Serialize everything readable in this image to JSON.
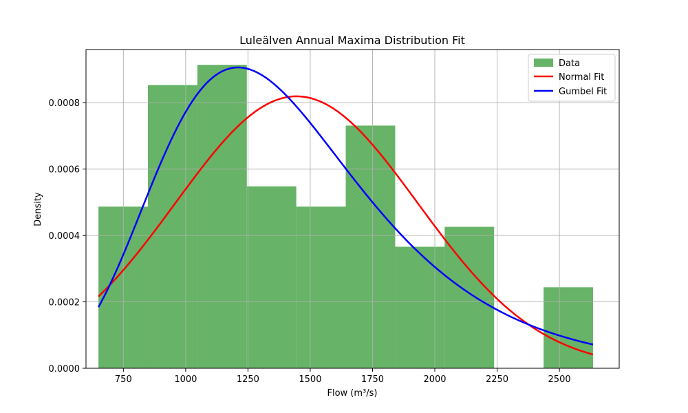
{
  "chart_data": {
    "type": "histogram-with-fits",
    "title": "Luleälven Annual Maxima Distribution Fit",
    "xlabel": "Flow (m³/s)",
    "ylabel": "Density",
    "xlim": [
      600,
      2740
    ],
    "ylim": [
      0,
      0.00096
    ],
    "x_ticks": [
      750,
      1000,
      1250,
      1500,
      1750,
      2000,
      2250,
      2500
    ],
    "x_tick_labels": [
      "750",
      "1000",
      "1250",
      "1500",
      "1750",
      "2000",
      "2250",
      "2500"
    ],
    "y_ticks": [
      0,
      0.0002,
      0.0004,
      0.0006,
      0.0008
    ],
    "y_tick_labels": [
      "0.0000",
      "0.0002",
      "0.0004",
      "0.0006",
      "0.0008"
    ],
    "grid": true,
    "legend_position": "top-right",
    "histogram": {
      "name": "Data",
      "color": "#4ca64c",
      "bin_edges": [
        650,
        848.5,
        1047,
        1245.5,
        1444,
        1642.5,
        1841,
        2039.5,
        2238,
        2436.5,
        2635
      ],
      "densities": [
        0.000487,
        0.000853,
        0.000914,
        0.000548,
        0.000487,
        0.000731,
        0.000366,
        0.000426,
        0,
        0.000244
      ]
    },
    "series": [
      {
        "name": "Normal Fit",
        "color": "#ff0000",
        "distribution": "normal",
        "params": {
          "mean": 1445,
          "std": 487
        },
        "x_range": [
          650,
          2635
        ]
      },
      {
        "name": "Gumbel Fit",
        "color": "#0000ff",
        "distribution": "gumbel",
        "params": {
          "loc": 1210,
          "scale": 406
        },
        "x_range": [
          650,
          2635
        ]
      }
    ]
  }
}
